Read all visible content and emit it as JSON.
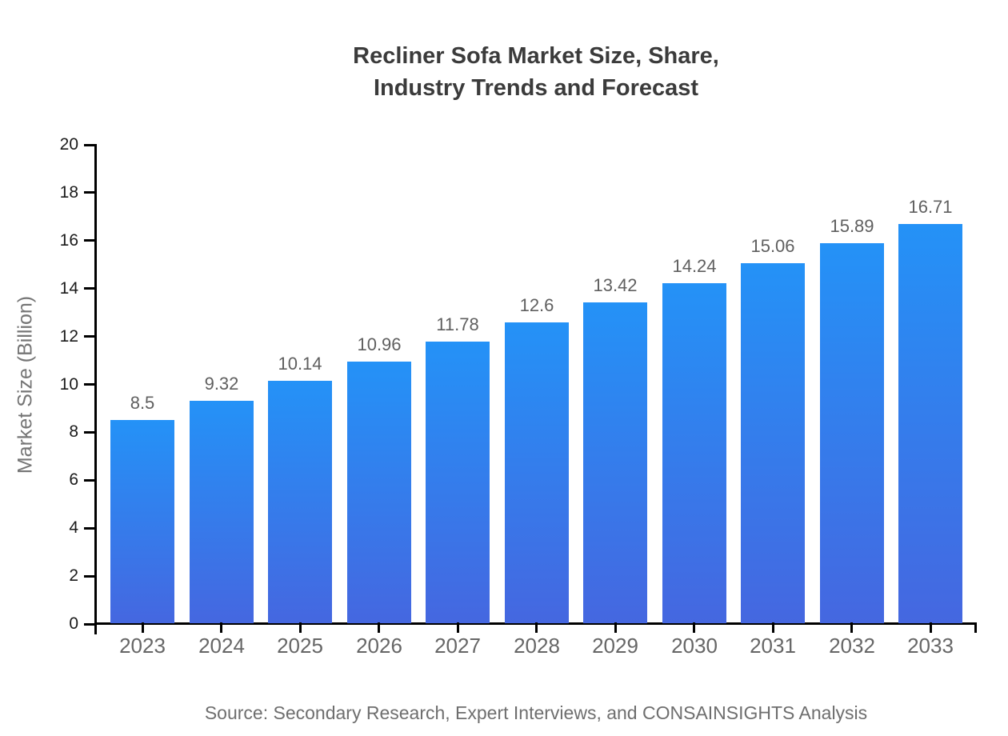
{
  "title": {
    "line1": "Recliner Sofa Market Size, Share,",
    "line2": "Industry Trends and Forecast",
    "color": "#3b3b3b"
  },
  "source_note": {
    "text": "Source: Secondary Research, Expert Interviews, and CONSAINSIGHTS Analysis",
    "color": "#6e6e6e"
  },
  "chart_data": {
    "type": "bar",
    "title": "Recliner Sofa Market Size, Share, Industry Trends and Forecast",
    "categories": [
      "2023",
      "2024",
      "2025",
      "2026",
      "2027",
      "2028",
      "2029",
      "2030",
      "2031",
      "2032",
      "2033"
    ],
    "values": [
      8.5,
      9.32,
      10.14,
      10.96,
      11.78,
      12.6,
      13.42,
      14.24,
      15.06,
      15.89,
      16.71
    ],
    "value_labels": [
      "8.5",
      "9.32",
      "10.14",
      "10.96",
      "11.78",
      "12.6",
      "13.42",
      "14.24",
      "15.06",
      "15.89",
      "16.71"
    ],
    "xlabel": "",
    "ylabel": "Market Size (Billion)",
    "ylim": [
      0,
      20
    ],
    "ytick_step": 2,
    "yticks": [
      0,
      2,
      4,
      6,
      8,
      10,
      12,
      14,
      16,
      18,
      20
    ],
    "grid": false,
    "legend": false,
    "colors": {
      "bar_gradient_top": "#2492f7",
      "bar_gradient_bottom": "#4567e0",
      "axis": "#000000",
      "y_tick_label": "#1a1a1a",
      "x_tick_label": "#666666",
      "value_label": "#5f5f5f",
      "y_axis_title": "#757575"
    }
  }
}
